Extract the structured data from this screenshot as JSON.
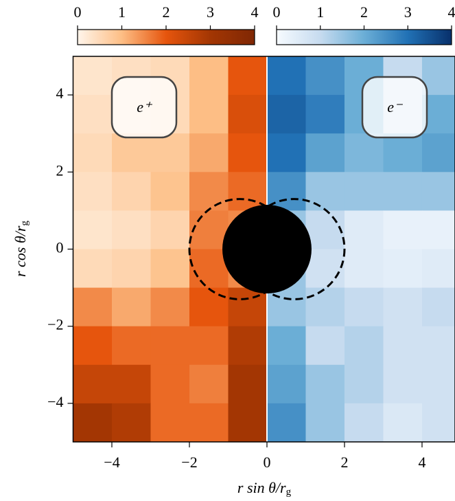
{
  "chart_data": {
    "type": "heatmap",
    "x_label": {
      "main": "r sin θ/r",
      "sub": "g"
    },
    "y_label": {
      "main": "r cos θ/r",
      "sub": "g"
    },
    "xlim": [
      -5,
      4.85
    ],
    "ylim": [
      -5,
      5
    ],
    "xticks": [
      {
        "value": -4,
        "label": "−4"
      },
      {
        "value": -2,
        "label": "−2"
      },
      0,
      2,
      4
    ],
    "yticks": [
      {
        "value": -4,
        "label": "−4"
      },
      {
        "value": -2,
        "label": "−2"
      },
      0,
      2,
      4
    ],
    "horizon_radius": 1.15,
    "dashed_circles": [
      {
        "cx": -0.7,
        "cy": 0,
        "r": 1.3
      },
      {
        "cx": 0.7,
        "cy": 0,
        "r": 1.3
      }
    ],
    "panels": [
      {
        "label": "e⁺",
        "x_range": [
          -5,
          0
        ],
        "y_range": [
          -5,
          5
        ],
        "cmap": [
          "#fff5eb",
          "#fdbe85",
          "#e6550d",
          "#a33603",
          "#7f2704"
        ],
        "clim": [
          0,
          4
        ],
        "cticks": [
          0,
          1,
          2,
          3,
          4
        ],
        "values": [
          [
            0.3,
            0.4,
            0.5,
            1.0,
            2.0
          ],
          [
            0.4,
            0.4,
            0.5,
            1.0,
            2.2
          ],
          [
            0.5,
            0.8,
            0.8,
            1.2,
            2.0
          ],
          [
            0.4,
            0.6,
            0.9,
            1.5,
            1.8
          ],
          [
            0.3,
            0.4,
            0.6,
            1.6,
            1.5
          ],
          [
            0.5,
            0.6,
            0.9,
            1.8,
            1.5
          ],
          [
            1.5,
            1.2,
            1.5,
            2.0,
            2.5
          ],
          [
            2.0,
            1.8,
            1.8,
            1.8,
            2.8
          ],
          [
            2.5,
            2.5,
            1.8,
            1.6,
            3.0
          ],
          [
            3.0,
            2.8,
            1.8,
            1.8,
            3.0
          ]
        ]
      },
      {
        "label": "e⁻",
        "x_range": [
          0,
          5
        ],
        "y_range": [
          -5,
          5
        ],
        "cmap": [
          "#f7fbff",
          "#c6dbef",
          "#6baed6",
          "#2171b5",
          "#08306b"
        ],
        "clim": [
          0,
          4
        ],
        "cticks": [
          0,
          1,
          2,
          3,
          4
        ],
        "values": [
          [
            3.0,
            2.5,
            2.0,
            1.0,
            1.5
          ],
          [
            3.2,
            2.8,
            2.0,
            1.0,
            2.0
          ],
          [
            3.0,
            2.2,
            1.8,
            2.0,
            2.2
          ],
          [
            2.5,
            1.5,
            1.5,
            1.5,
            1.5
          ],
          [
            1.5,
            1.0,
            0.5,
            0.3,
            0.3
          ],
          [
            1.5,
            0.8,
            0.5,
            0.4,
            0.5
          ],
          [
            1.5,
            1.2,
            1.0,
            0.8,
            1.0
          ],
          [
            2.0,
            1.0,
            1.2,
            0.8,
            0.8
          ],
          [
            2.2,
            1.5,
            1.2,
            0.8,
            0.8
          ],
          [
            2.5,
            1.5,
            1.0,
            0.6,
            0.8
          ]
        ]
      }
    ]
  }
}
